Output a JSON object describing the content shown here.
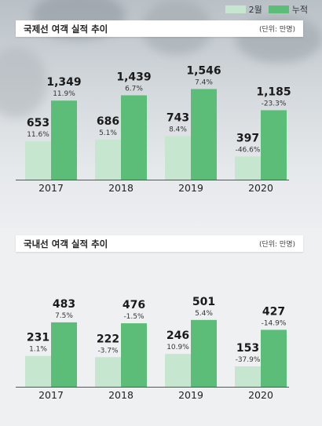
{
  "legend": {
    "monthly_label": "2월",
    "monthly_color": "#c7e6cf",
    "cumulative_label": "누적",
    "cumulative_color": "#5bbd78"
  },
  "chart_data": [
    {
      "type": "bar",
      "title": "국제선 여객 실적 추이",
      "unit": "(단위: 만명)",
      "categories": [
        "2017",
        "2018",
        "2019",
        "2020"
      ],
      "series": [
        {
          "name": "2월",
          "values": [
            653,
            686,
            743,
            397
          ],
          "changes": [
            "11.6%",
            "5.1%",
            "8.4%",
            "-46.6%"
          ]
        },
        {
          "name": "누적",
          "values": [
            1349,
            1439,
            1546,
            1185
          ],
          "changes": [
            "11.9%",
            "6.7%",
            "7.4%",
            "-23.3%"
          ]
        }
      ],
      "value_labels": {
        "2월": [
          "653",
          "686",
          "743",
          "397"
        ],
        "누적": [
          "1,349",
          "1,439",
          "1,546",
          "1,185"
        ]
      }
    },
    {
      "type": "bar",
      "title": "국내선 여객 실적 추이",
      "unit": "(단위: 만명)",
      "categories": [
        "2017",
        "2018",
        "2019",
        "2020"
      ],
      "series": [
        {
          "name": "2월",
          "values": [
            231,
            222,
            246,
            153
          ],
          "changes": [
            "1.1%",
            "-3.7%",
            "10.9%",
            "-37.9%"
          ]
        },
        {
          "name": "누적",
          "values": [
            483,
            476,
            501,
            427
          ],
          "changes": [
            "7.5%",
            "-1.5%",
            "5.4%",
            "-14.9%"
          ]
        }
      ],
      "value_labels": {
        "2월": [
          "231",
          "222",
          "246",
          "153"
        ],
        "누적": [
          "483",
          "476",
          "501",
          "427"
        ]
      }
    }
  ]
}
